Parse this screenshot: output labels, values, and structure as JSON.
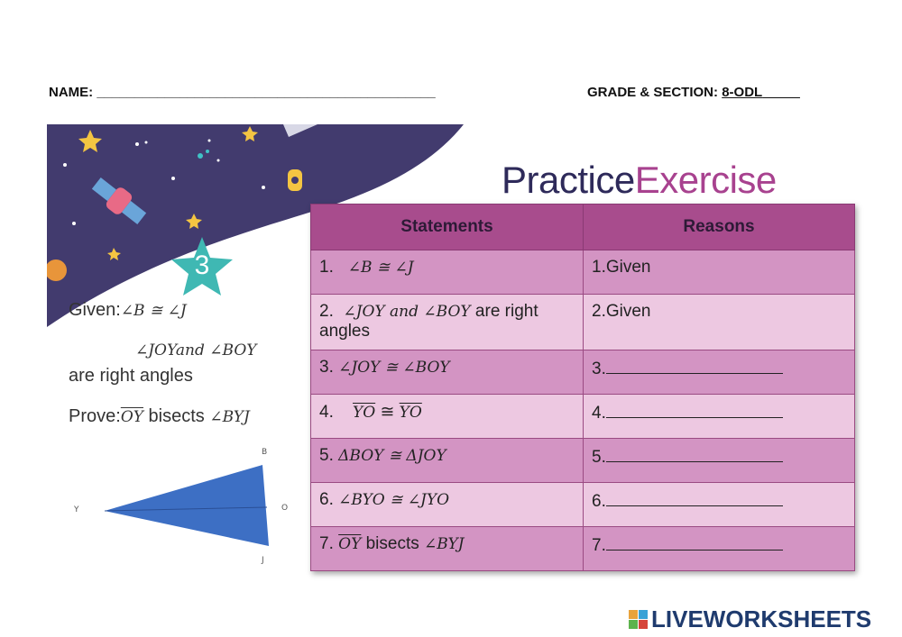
{
  "header": {
    "name_label": "NAME:",
    "name_blank": "_____________________________________________",
    "grade_label": "GRADE & SECTION:",
    "grade_value": "8-ODL",
    "grade_blank": "_____"
  },
  "title": {
    "word1": "Practice",
    "word2": "Exercise"
  },
  "badge_number": "3",
  "problem": {
    "given_label": "Given:",
    "given_1": "∠B ≅ ∠J",
    "given_2": "∠JOYand ∠BOY",
    "given_3": "are right angles",
    "prove_label": "Prove:",
    "prove_segment": "OY",
    "prove_rest": "bisects",
    "prove_angle": "∠BYJ"
  },
  "figure_labels": {
    "b": "B",
    "y": "Y",
    "o": "O",
    "j": "J"
  },
  "table": {
    "col_statements": "Statements",
    "col_reasons": "Reasons",
    "rows": [
      {
        "num": "1.",
        "statement": "∠B ≅ ∠J",
        "reason": "1.Given"
      },
      {
        "num": "2.",
        "statement": "∠JOY and ∠BOY",
        "statement_tail": "are right angles",
        "reason": "2.Given"
      },
      {
        "num": "3.",
        "statement": "∠JOY ≅ ∠BOY",
        "reason": "3."
      },
      {
        "num": "4.",
        "seg_a": "YO",
        "op": "≅",
        "seg_b": "YO",
        "reason": "4."
      },
      {
        "num": "5.",
        "statement": "ΔBOY ≅ ΔJOY",
        "reason": "5."
      },
      {
        "num": "6.",
        "statement": "∠BYO ≅ ∠JYO",
        "reason": "6."
      },
      {
        "num": "7.",
        "seg_a": "OY",
        "statement_tail": "bisects",
        "angle": "∠BYJ",
        "reason": "7."
      }
    ]
  },
  "brand": {
    "logo_text": "LIVEWORKSHEETS",
    "colors": [
      "#e8a33c",
      "#3aa2d6",
      "#5db34d",
      "#d6453a"
    ]
  }
}
